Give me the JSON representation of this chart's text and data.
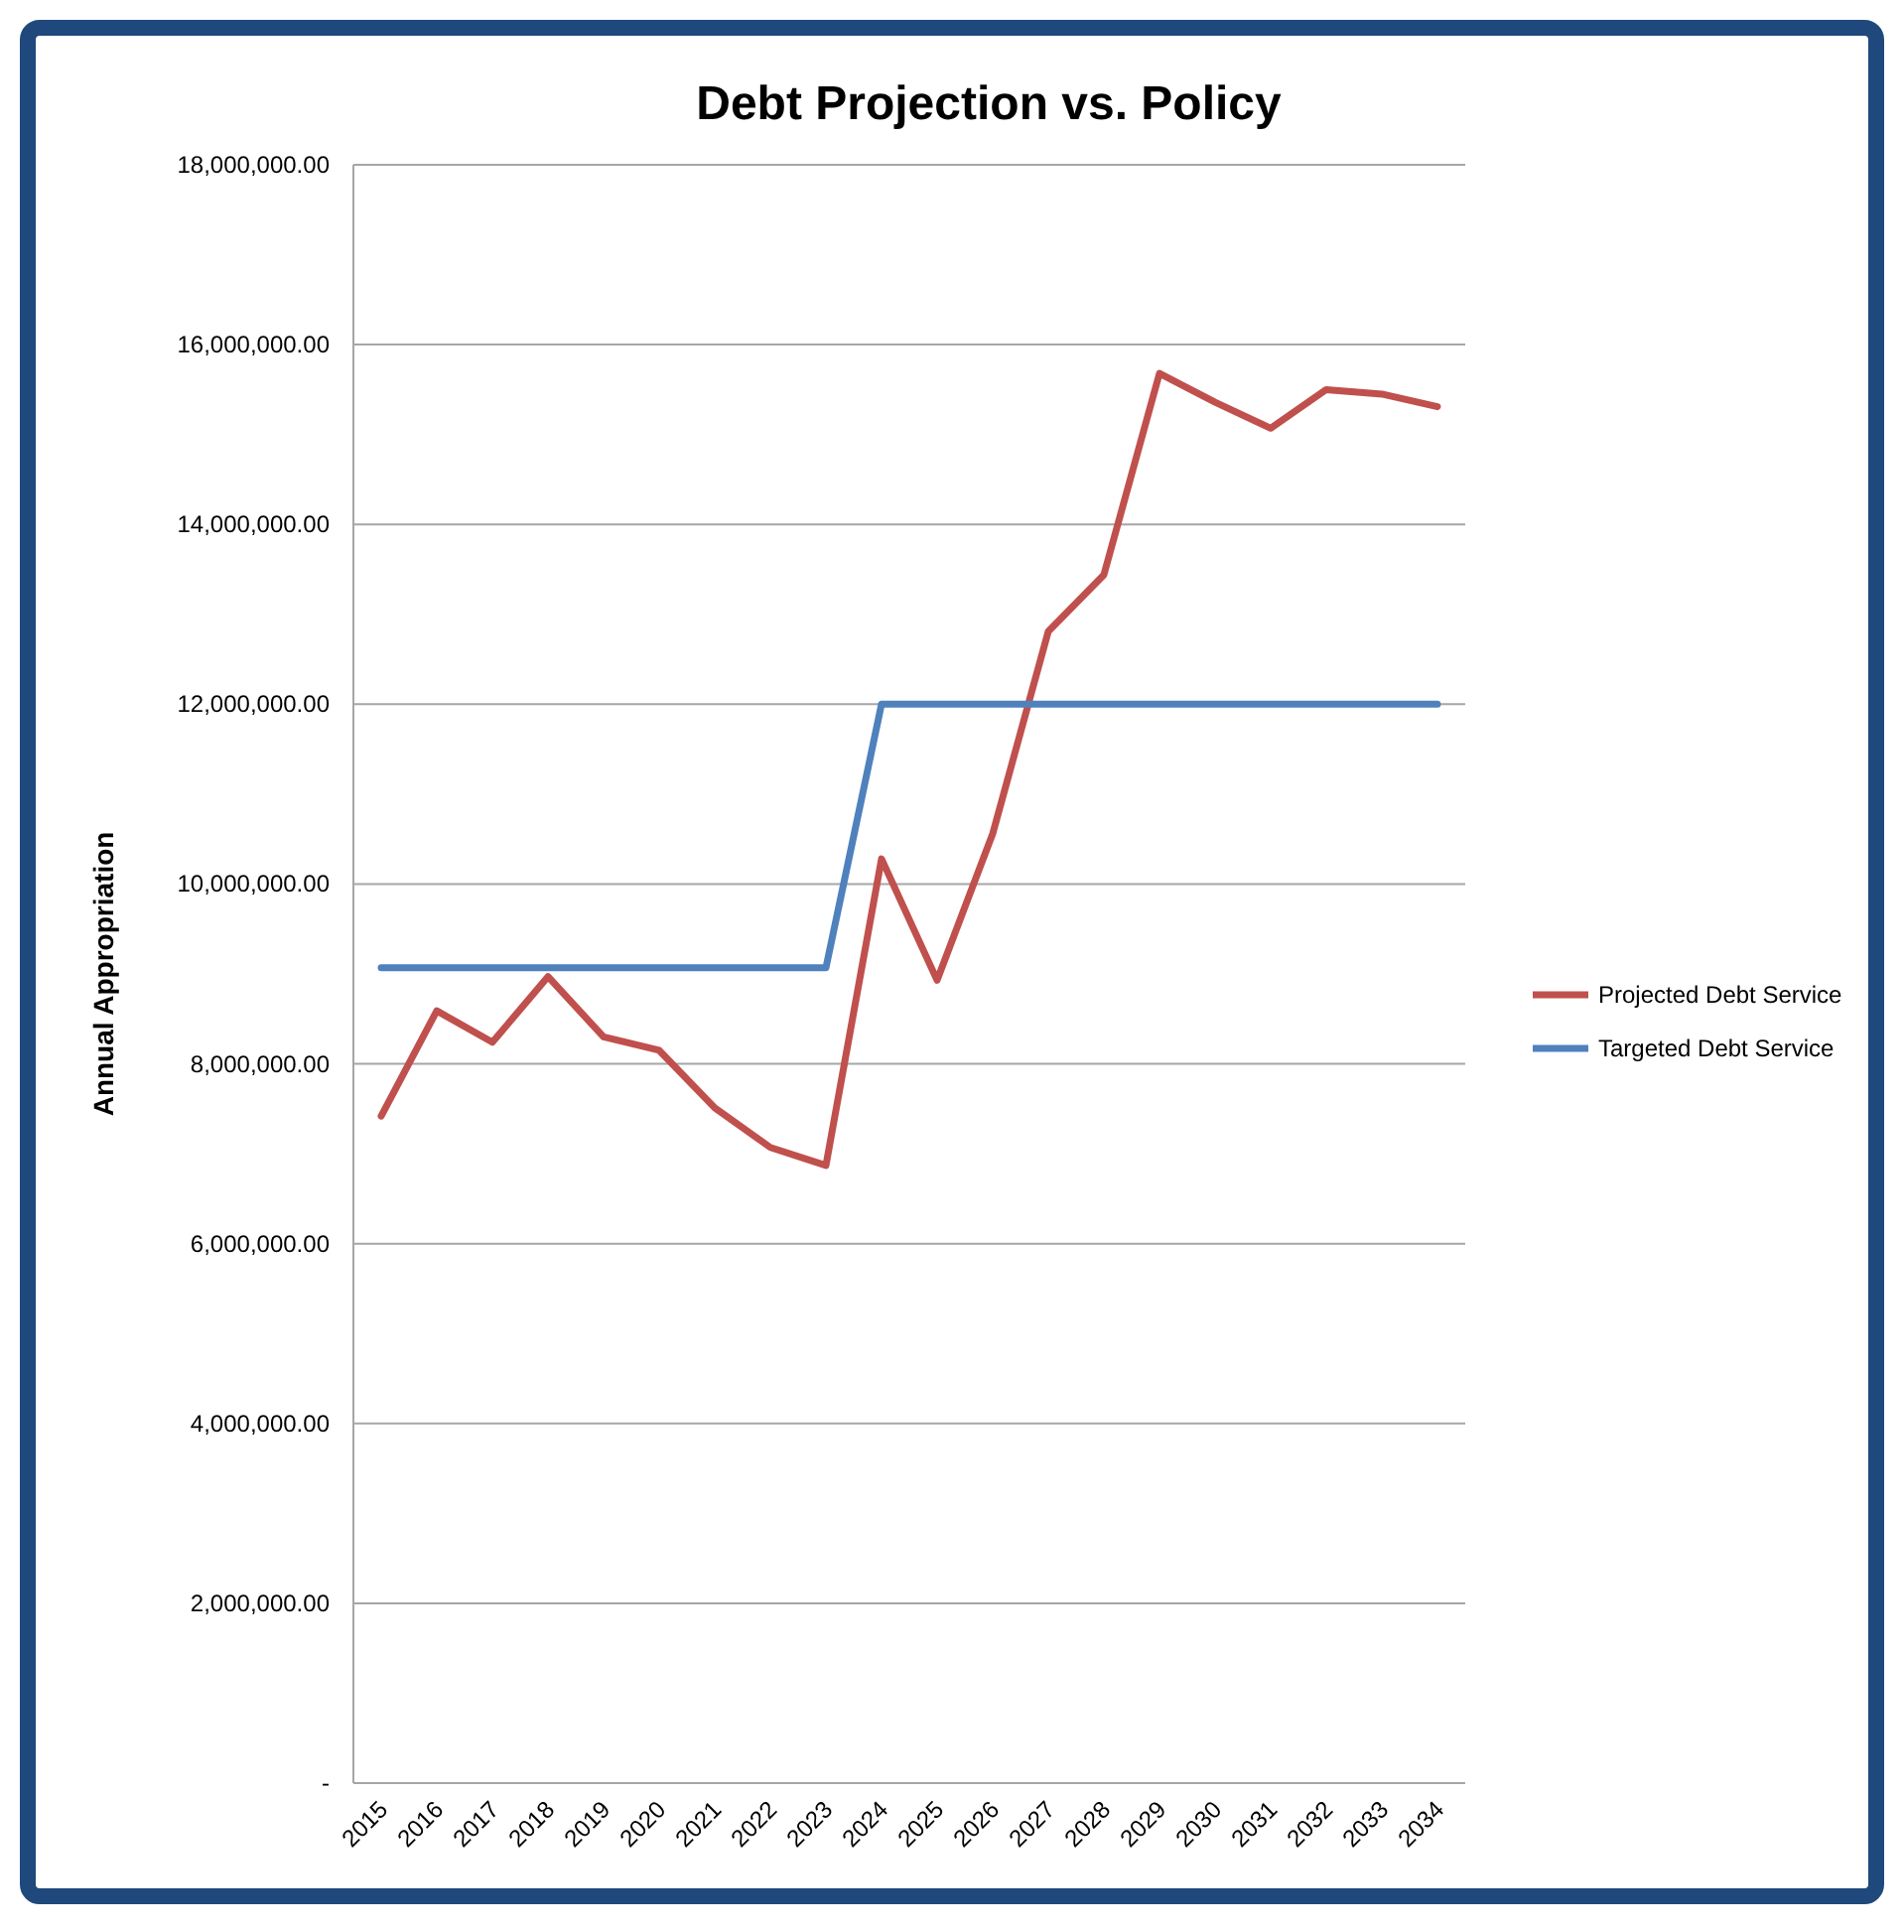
{
  "chart_data": {
    "type": "line",
    "title": "Debt Projection vs. Policy",
    "ylabel": "Annual Appropriation",
    "categories": [
      "2015",
      "2016",
      "2017",
      "2018",
      "2019",
      "2020",
      "2021",
      "2022",
      "2023",
      "2024",
      "2025",
      "2026",
      "2027",
      "2028",
      "2029",
      "2030",
      "2031",
      "2032",
      "2033",
      "2034"
    ],
    "series": [
      {
        "name": "Projected Debt Service",
        "color": "#c0504d",
        "values": [
          7420000,
          8590000,
          8240000,
          8970000,
          8300000,
          8150000,
          7510000,
          7070000,
          6870000,
          10280000,
          8930000,
          10560000,
          12810000,
          13440000,
          15680000,
          15360000,
          15070000,
          15500000,
          15450000,
          15310000
        ]
      },
      {
        "name": "Targeted Debt Service",
        "color": "#4f81bd",
        "values": [
          9070000,
          9070000,
          9070000,
          9070000,
          9070000,
          9070000,
          9070000,
          9070000,
          9070000,
          12000000,
          12000000,
          12000000,
          12000000,
          12000000,
          12000000,
          12000000,
          12000000,
          12000000,
          12000000,
          12000000
        ]
      }
    ],
    "ylim": [
      0,
      18000000
    ],
    "yticks": [
      {
        "value": 0,
        "label": "-"
      },
      {
        "value": 2000000,
        "label": "2,000,000.00"
      },
      {
        "value": 4000000,
        "label": "4,000,000.00"
      },
      {
        "value": 6000000,
        "label": "6,000,000.00"
      },
      {
        "value": 8000000,
        "label": "8,000,000.00"
      },
      {
        "value": 10000000,
        "label": "10,000,000.00"
      },
      {
        "value": 12000000,
        "label": "12,000,000.00"
      },
      {
        "value": 14000000,
        "label": "14,000,000.00"
      },
      {
        "value": 16000000,
        "label": "16,000,000.00"
      },
      {
        "value": 18000000,
        "label": "18,000,000.00"
      }
    ],
    "grid": "y",
    "legend": "right",
    "marker": "none",
    "line_style": "solid"
  }
}
